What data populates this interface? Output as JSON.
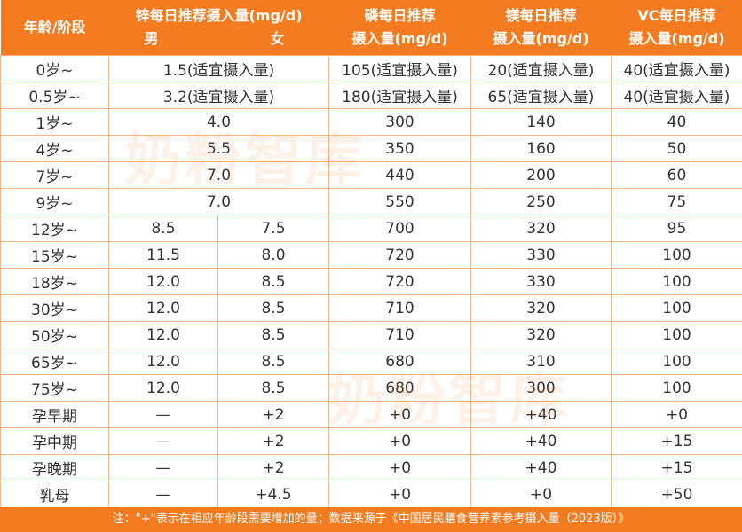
{
  "header": {
    "age": "年龄/阶段",
    "zinc": "锌每日推荐摄入量(mg/d)",
    "male": "男",
    "female": "女",
    "phosphorus": [
      "磷每日推荐",
      "摄入量(mg/d)"
    ],
    "magnesium": [
      "镁每日推荐",
      "摄入量(mg/d)"
    ],
    "vc": [
      "VC每日推荐",
      "摄入量(mg/d)"
    ]
  },
  "table": {
    "rows": [
      [
        "0岁~",
        "1.5(适宜摄入量)",
        "105(适宜摄入量)",
        "20(适宜摄入量)",
        "40(适宜摄入量)"
      ],
      [
        "0.5岁~",
        "3.2(适宜摄入量)",
        "180(适宜摄入量)",
        "65(适宜摄入量)",
        "40(适宜摄入量)"
      ],
      [
        "1岁~",
        "4.0",
        "300",
        "140",
        "40"
      ],
      [
        "4岁~",
        "5.5",
        "350",
        "160",
        "50"
      ],
      [
        "7岁~",
        "7.0",
        "440",
        "200",
        "60"
      ],
      [
        "9岁~",
        "7.0",
        "550",
        "250",
        "75"
      ],
      [
        "12岁~",
        "8.5",
        "7.5",
        "700",
        "320",
        "95"
      ],
      [
        "15岁~",
        "11.5",
        "8.0",
        "720",
        "330",
        "100"
      ],
      [
        "18岁~",
        "12.0",
        "8.5",
        "720",
        "330",
        "100"
      ],
      [
        "30岁~",
        "12.0",
        "8.5",
        "710",
        "320",
        "100"
      ],
      [
        "50岁~",
        "12.0",
        "8.5",
        "710",
        "320",
        "100"
      ],
      [
        "65岁~",
        "12.0",
        "8.5",
        "680",
        "310",
        "100"
      ],
      [
        "75岁~",
        "12.0",
        "8.5",
        "680",
        "300",
        "100"
      ],
      [
        "孕早期",
        "—",
        "+2",
        "+0",
        "+40",
        "+0"
      ],
      [
        "孕中期",
        "—",
        "+2",
        "+0",
        "+40",
        "+15"
      ],
      [
        "孕晚期",
        "—",
        "+2",
        "+0",
        "+40",
        "+15"
      ],
      [
        "乳母",
        "—",
        "+4.5",
        "+0",
        "+0",
        "+50"
      ]
    ]
  },
  "watermark": "奶粉智库",
  "footer": "注：\"+\"表示在相应年龄段需要增加的量；数据来源于《中国居民膳食营养素参考摄入量（2023版）》"
}
